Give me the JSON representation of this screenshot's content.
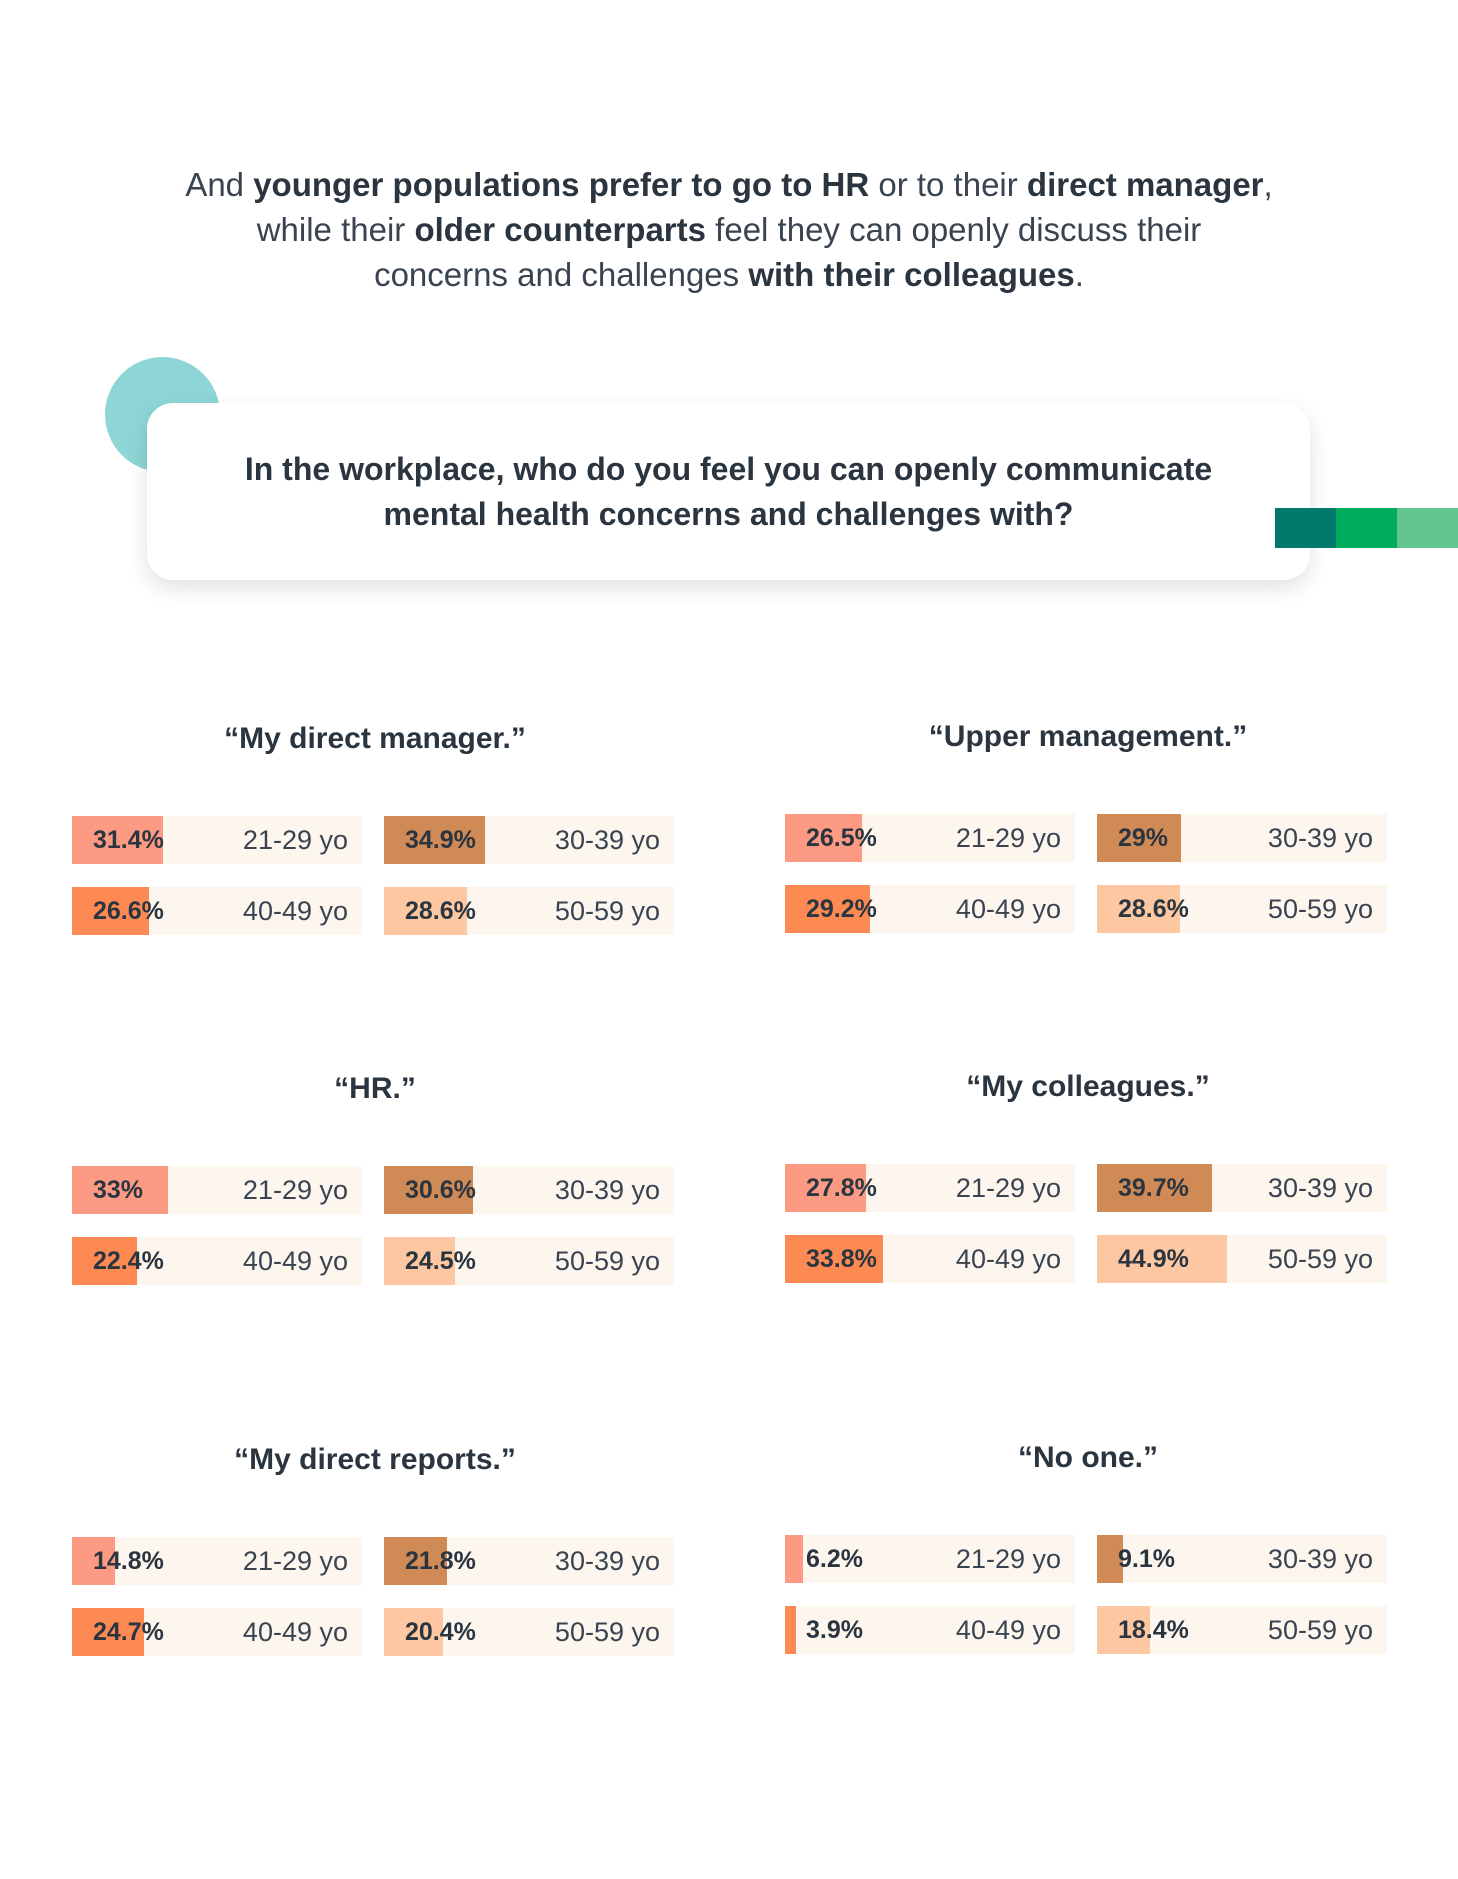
{
  "intro": {
    "line1": [
      {
        "t": "And ",
        "b": false
      },
      {
        "t": "younger populations prefer to go to HR",
        "b": true
      },
      {
        "t": " or to their ",
        "b": false
      },
      {
        "t": "direct manager",
        "b": true
      },
      {
        "t": ",",
        "b": false
      }
    ],
    "line2": [
      {
        "t": "while their ",
        "b": false
      },
      {
        "t": "older counterparts",
        "b": true
      },
      {
        "t": " feel they can openly discuss their",
        "b": false
      }
    ],
    "line3": [
      {
        "t": "concerns and challenges ",
        "b": false
      },
      {
        "t": "with their colleagues",
        "b": true
      },
      {
        "t": ".",
        "b": false
      }
    ]
  },
  "question": {
    "line1": "In the workplace, who do you feel you can openly communicate",
    "line2": "mental health concerns and challenges with?"
  },
  "colors": {
    "age_21_29": "#fd9a83",
    "age_30_39": "#d08a55",
    "age_40_49": "#fe8a53",
    "age_50_59": "#fcc7a1",
    "cell_bg": "#fdf6ef",
    "accent_circle": "#8ed6d6",
    "stripes": [
      "#017a6b",
      "#00ad5f",
      "#62c48f"
    ]
  },
  "chart_data": {
    "type": "bar",
    "max_value": 100,
    "groups": [
      {
        "title": "“My direct manager.”",
        "items": [
          {
            "age": "21-29 yo",
            "value": 31.4,
            "label": "31.4%"
          },
          {
            "age": "30-39 yo",
            "value": 34.9,
            "label": "34.9%"
          },
          {
            "age": "40-49 yo",
            "value": 26.6,
            "label": "26.6%"
          },
          {
            "age": "50-59 yo",
            "value": 28.6,
            "label": "28.6%"
          }
        ]
      },
      {
        "title": "“Upper management.”",
        "items": [
          {
            "age": "21-29 yo",
            "value": 26.5,
            "label": "26.5%"
          },
          {
            "age": "30-39 yo",
            "value": 29,
            "label": "29%"
          },
          {
            "age": "40-49 yo",
            "value": 29.2,
            "label": "29.2%"
          },
          {
            "age": "50-59 yo",
            "value": 28.6,
            "label": "28.6%"
          }
        ]
      },
      {
        "title": "“HR.”",
        "items": [
          {
            "age": "21-29 yo",
            "value": 33,
            "label": "33%"
          },
          {
            "age": "30-39 yo",
            "value": 30.6,
            "label": "30.6%"
          },
          {
            "age": "40-49 yo",
            "value": 22.4,
            "label": "22.4%"
          },
          {
            "age": "50-59 yo",
            "value": 24.5,
            "label": "24.5%"
          }
        ]
      },
      {
        "title": "“My colleagues.”",
        "items": [
          {
            "age": "21-29 yo",
            "value": 27.8,
            "label": "27.8%"
          },
          {
            "age": "30-39 yo",
            "value": 39.7,
            "label": "39.7%"
          },
          {
            "age": "40-49 yo",
            "value": 33.8,
            "label": "33.8%"
          },
          {
            "age": "50-59 yo",
            "value": 44.9,
            "label": "44.9%"
          }
        ]
      },
      {
        "title": "“My direct reports.”",
        "items": [
          {
            "age": "21-29 yo",
            "value": 14.8,
            "label": "14.8%"
          },
          {
            "age": "30-39 yo",
            "value": 21.8,
            "label": "21.8%"
          },
          {
            "age": "40-49 yo",
            "value": 24.7,
            "label": "24.7%"
          },
          {
            "age": "50-59 yo",
            "value": 20.4,
            "label": "20.4%"
          }
        ]
      },
      {
        "title": "“No one.”",
        "items": [
          {
            "age": "21-29 yo",
            "value": 6.2,
            "label": "6.2%"
          },
          {
            "age": "30-39 yo",
            "value": 9.1,
            "label": "9.1%"
          },
          {
            "age": "40-49 yo",
            "value": 3.9,
            "label": "3.9%"
          },
          {
            "age": "50-59 yo",
            "value": 18.4,
            "label": "18.4%"
          }
        ]
      }
    ]
  }
}
